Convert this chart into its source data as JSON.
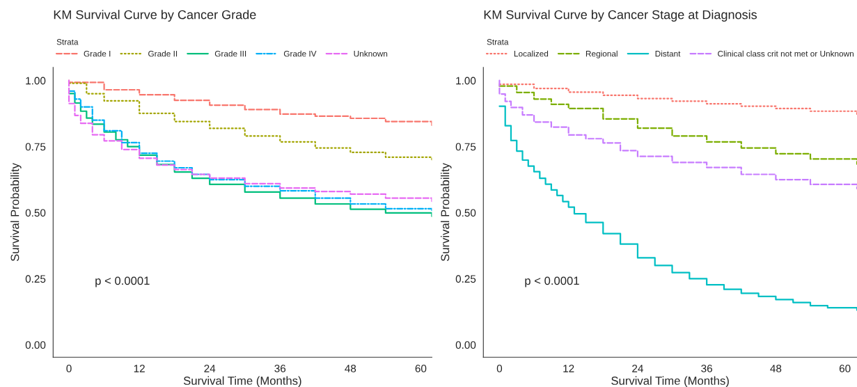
{
  "chart_data": [
    {
      "type": "step",
      "title": "KM Survival Curve by Cancer Grade",
      "xlabel": "Survival Time (Months)",
      "ylabel": "Survival Probability",
      "legend_title": "Strata",
      "legend": "top",
      "grid": false,
      "xlim": [
        -2.7,
        61.9
      ],
      "ylim": [
        -0.047,
        1.05
      ],
      "xticks": [
        0,
        12,
        24,
        36,
        48,
        60
      ],
      "yticks": [
        {
          "value": 0,
          "label": "0.00"
        },
        {
          "value": 0.25,
          "label": "0.25"
        },
        {
          "value": 0.5,
          "label": "0.50"
        },
        {
          "value": 0.75,
          "label": "0.75"
        },
        {
          "value": 1,
          "label": "1.00"
        }
      ],
      "annotations": [
        "p < 0.0001"
      ],
      "series": [
        {
          "name": "Grade I",
          "color": "#f8766d",
          "line_style": "dashed",
          "x": [
            0,
            0,
            6,
            12,
            18,
            24,
            30,
            36,
            42,
            48,
            54,
            61.9
          ],
          "values": [
            1.0,
            0.993,
            0.965,
            0.946,
            0.925,
            0.907,
            0.89,
            0.873,
            0.865,
            0.857,
            0.845,
            0.831
          ]
        },
        {
          "name": "Grade II",
          "color": "#a3a500",
          "line_style": "dotted",
          "x": [
            0,
            3,
            6,
            12,
            18,
            24,
            30,
            36,
            42,
            48,
            54,
            61.9
          ],
          "values": [
            0.99,
            0.95,
            0.923,
            0.876,
            0.845,
            0.819,
            0.79,
            0.768,
            0.745,
            0.728,
            0.71,
            0.694
          ]
        },
        {
          "name": "Grade III",
          "color": "#00bf7d",
          "line_style": "solid",
          "x": [
            0,
            1,
            2,
            3,
            4,
            6,
            8,
            10,
            12,
            15,
            18,
            21,
            24,
            30,
            36,
            42,
            48,
            54,
            61.9
          ],
          "values": [
            0.951,
            0.915,
            0.884,
            0.858,
            0.835,
            0.805,
            0.776,
            0.75,
            0.718,
            0.682,
            0.654,
            0.63,
            0.607,
            0.578,
            0.555,
            0.533,
            0.513,
            0.499,
            0.486
          ]
        },
        {
          "name": "Grade IV",
          "color": "#00b0f6",
          "line_style": "dashdot",
          "x": [
            0,
            1,
            2,
            4,
            6,
            9,
            12,
            15,
            18,
            21,
            24,
            30,
            36,
            42,
            48,
            54,
            61.9
          ],
          "values": [
            0.96,
            0.93,
            0.9,
            0.85,
            0.81,
            0.765,
            0.725,
            0.695,
            0.67,
            0.645,
            0.625,
            0.6,
            0.583,
            0.555,
            0.533,
            0.515,
            0.505
          ]
        },
        {
          "name": "Unknown",
          "color": "#e76bf3",
          "line_style": "dashed",
          "x": [
            0,
            0,
            1,
            2,
            4,
            6,
            9,
            12,
            15,
            18,
            21,
            24,
            30,
            36,
            42,
            48,
            54,
            61.9
          ],
          "values": [
            1.0,
            0.913,
            0.868,
            0.838,
            0.795,
            0.772,
            0.739,
            0.706,
            0.68,
            0.663,
            0.645,
            0.631,
            0.61,
            0.593,
            0.58,
            0.57,
            0.555,
            0.543
          ]
        }
      ]
    },
    {
      "type": "step",
      "title": "KM Survival Curve by Cancer Stage at Diagnosis",
      "xlabel": "Survival Time (Months)",
      "ylabel": "Survival Probability",
      "legend_title": "Strata",
      "legend": "top",
      "grid": false,
      "xlim": [
        -2.8,
        62.1
      ],
      "ylim": [
        -0.047,
        1.05
      ],
      "xticks": [
        0,
        12,
        24,
        36,
        48,
        60
      ],
      "yticks": [
        {
          "value": 0,
          "label": "0.00"
        },
        {
          "value": 0.25,
          "label": "0.25"
        },
        {
          "value": 0.5,
          "label": "0.50"
        },
        {
          "value": 0.75,
          "label": "0.75"
        },
        {
          "value": 1,
          "label": "1.00"
        }
      ],
      "annotations": [
        "p < 0.0001"
      ],
      "series": [
        {
          "name": "Localized",
          "color": "#f8766d",
          "line_style": "dotted",
          "x": [
            0,
            6,
            12,
            18,
            24,
            30,
            36,
            42,
            48,
            54,
            62.1
          ],
          "values": [
            0.986,
            0.97,
            0.956,
            0.944,
            0.932,
            0.922,
            0.912,
            0.903,
            0.894,
            0.884,
            0.873
          ]
        },
        {
          "name": "Regional",
          "color": "#7cae00",
          "line_style": "dashed",
          "x": [
            0,
            3,
            6,
            9,
            12,
            18,
            24,
            30,
            36,
            42,
            48,
            54,
            62.1
          ],
          "values": [
            0.979,
            0.955,
            0.93,
            0.91,
            0.894,
            0.855,
            0.82,
            0.79,
            0.768,
            0.745,
            0.723,
            0.703,
            0.684
          ]
        },
        {
          "name": "Distant",
          "color": "#00bfc4",
          "line_style": "solid",
          "x": [
            0,
            1,
            2,
            3,
            4,
            5,
            6,
            7,
            8,
            9,
            10,
            11,
            12,
            13,
            15,
            18,
            21,
            24,
            27,
            30,
            33,
            36,
            39,
            42,
            45,
            48,
            51,
            54,
            57,
            62.1
          ],
          "values": [
            0.903,
            0.829,
            0.773,
            0.733,
            0.699,
            0.676,
            0.655,
            0.63,
            0.608,
            0.586,
            0.565,
            0.542,
            0.521,
            0.496,
            0.463,
            0.421,
            0.381,
            0.329,
            0.3,
            0.273,
            0.25,
            0.227,
            0.21,
            0.195,
            0.183,
            0.171,
            0.16,
            0.148,
            0.14,
            0.131
          ]
        },
        {
          "name": "Clinical class crit not met or Unknown",
          "color": "#c77cff",
          "line_style": "dashed",
          "x": [
            0,
            0,
            1,
            2,
            4,
            6,
            9,
            12,
            15,
            18,
            21,
            24,
            30,
            36,
            42,
            48,
            54,
            62.1
          ],
          "values": [
            1.0,
            0.949,
            0.921,
            0.898,
            0.87,
            0.843,
            0.824,
            0.794,
            0.78,
            0.764,
            0.735,
            0.713,
            0.69,
            0.671,
            0.645,
            0.625,
            0.607,
            0.591
          ]
        }
      ]
    }
  ]
}
